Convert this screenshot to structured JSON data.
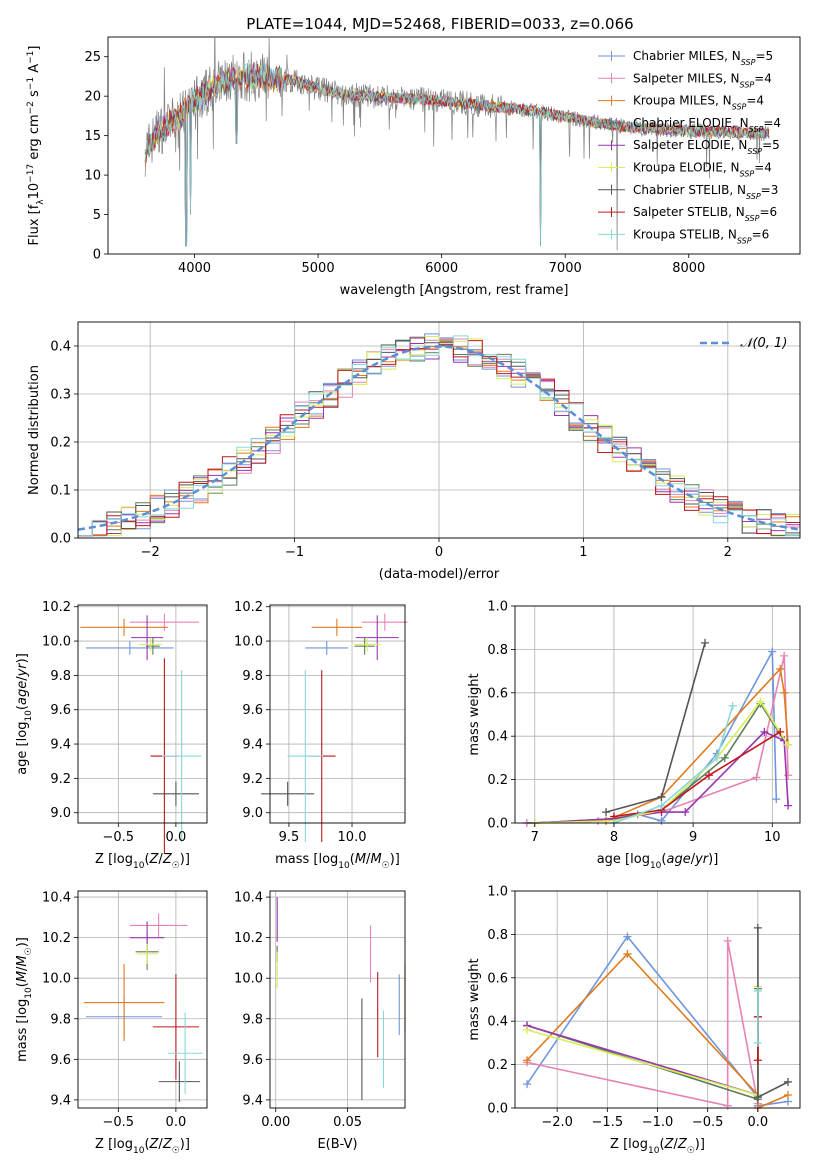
{
  "figure_title": "PLATE=1044, MJD=52468, FIBERID=0033, z=0.066",
  "colors": {
    "Chabrier MILES": "#6f96db",
    "Salpeter MILES": "#e583b5",
    "Kroupa MILES": "#e07b1f",
    "Chabrier ELODIE": "#5c7f5c",
    "Salpeter ELODIE": "#9a35ae",
    "Kroupa ELODIE": "#d7ee5a",
    "Chabrier STELIB": "#555555",
    "Salpeter STELIB": "#c0161d",
    "Kroupa STELIB": "#88d7da",
    "data": "#808080",
    "normal": "#5a8fd6",
    "grid": "#b0b0b0"
  },
  "chart_data": [
    {
      "id": "spectrum",
      "type": "line",
      "xlabel": "wavelength [Angstrom, rest frame]",
      "ylabel": "Flux [f_λ 10^-17 erg cm^-2 s^-1 A^-1]",
      "xlim": [
        3300,
        8900
      ],
      "ylim": [
        0,
        27.5
      ],
      "xticks": [
        4000,
        5000,
        6000,
        7000,
        8000
      ],
      "yticks": [
        0,
        5,
        10,
        15,
        20,
        25
      ],
      "grid": false,
      "legend_position": "top-right",
      "legend": [
        {
          "name": "Chabrier MILES",
          "nssp": "5"
        },
        {
          "name": "Salpeter MILES",
          "nssp": "4"
        },
        {
          "name": "Kroupa MILES",
          "nssp": "4"
        },
        {
          "name": "Chabrier ELODIE",
          "nssp": "4"
        },
        {
          "name": "Salpeter ELODIE",
          "nssp": "5"
        },
        {
          "name": "Kroupa ELODIE",
          "nssp": "4"
        },
        {
          "name": "Chabrier STELIB",
          "nssp": "3"
        },
        {
          "name": "Salpeter STELIB",
          "nssp": "6"
        },
        {
          "name": "Kroupa STELIB",
          "nssp": "6"
        }
      ],
      "continuum": {
        "x": [
          3600,
          3700,
          3850,
          4000,
          4200,
          4400,
          4600,
          4800,
          5000,
          5200,
          5400,
          5600,
          5800,
          6000,
          6200,
          6400,
          6600,
          6800,
          7000,
          7200,
          7400,
          7600,
          7800,
          8000,
          8200,
          8400,
          8600,
          8650
        ],
        "y": [
          13,
          15.5,
          17,
          19.5,
          21.5,
          22.5,
          22.3,
          22.0,
          21.0,
          20.2,
          20.0,
          19.8,
          19.6,
          19.4,
          19.1,
          18.7,
          18.4,
          18.0,
          17.4,
          16.8,
          16.3,
          16.0,
          15.8,
          15.6,
          15.5,
          15.4,
          15.3,
          15.3
        ]
      },
      "absorption_dips": [
        {
          "x": 3935,
          "y": 0
        },
        {
          "x": 3968,
          "y": 4
        },
        {
          "x": 4340,
          "y": 13
        },
        {
          "x": 6800,
          "y": 0
        },
        {
          "x": 7420,
          "y": 0
        }
      ]
    },
    {
      "id": "residuals",
      "type": "histogram",
      "xlabel": "(data-model)/error",
      "ylabel": "Normed distribution",
      "xlim": [
        -2.5,
        2.5
      ],
      "ylim": [
        0,
        0.45
      ],
      "xticks": [
        -2,
        -1,
        0,
        1,
        2
      ],
      "yticks": [
        0.0,
        0.1,
        0.2,
        0.3,
        0.4
      ],
      "grid": true,
      "bins": 50,
      "legend_position": "top-right",
      "legend": [
        {
          "name": "𝒩(0, 1)"
        }
      ],
      "reference_curve": {
        "mean": 0,
        "sigma": 1
      }
    },
    {
      "id": "age-vs-Z",
      "type": "errorbar",
      "xlabel": "Z [log₁₀(Z/Z☉)]",
      "ylabel": "age  [log₁₀(age/yr)]",
      "xlim": [
        -0.85,
        0.27
      ],
      "ylim": [
        8.94,
        10.21
      ],
      "xticks": [
        -0.5,
        0.0
      ],
      "yticks": [
        9.0,
        9.2,
        9.4,
        9.6,
        9.8,
        10.0,
        10.2
      ],
      "grid": true,
      "points": [
        {
          "model": "Chabrier MILES",
          "x": -0.4,
          "xerr": 0.38,
          "y": 9.96,
          "yerr": 0.04
        },
        {
          "model": "Salpeter MILES",
          "x": -0.1,
          "xerr": 0.3,
          "y": 10.11,
          "yerr": 0.05
        },
        {
          "model": "Kroupa MILES",
          "x": -0.45,
          "xerr": 0.38,
          "y": 10.08,
          "yerr": 0.05
        },
        {
          "model": "Chabrier ELODIE",
          "x": -0.2,
          "xerr": 0.06,
          "y": 9.97,
          "yerr": 0.05
        },
        {
          "model": "Salpeter ELODIE",
          "x": -0.25,
          "xerr": 0.14,
          "y": 10.02,
          "yerr": 0.13
        },
        {
          "model": "Kroupa ELODIE",
          "x": -0.22,
          "xerr": 0.1,
          "y": 9.98,
          "yerr": 0.04
        },
        {
          "model": "Chabrier STELIB",
          "x": 0.0,
          "xerr": 0.2,
          "y": 9.11,
          "yerr": 0.07
        },
        {
          "model": "Salpeter STELIB",
          "x": -0.1,
          "xerr": 0.12,
          "y": 9.33,
          "yerr": 0.57
        },
        {
          "model": "Kroupa STELIB",
          "x": 0.05,
          "xerr": 0.17,
          "y": 9.33,
          "yerr": 0.5
        }
      ]
    },
    {
      "id": "age-vs-mass",
      "type": "errorbar",
      "xlabel": "mass [log₁₀(M/M☉)]",
      "ylabel": "",
      "xlim": [
        9.35,
        10.42
      ],
      "ylim": [
        8.94,
        10.21
      ],
      "xticks": [
        9.5,
        10.0
      ],
      "yticks": [
        9.0,
        9.2,
        9.4,
        9.6,
        9.8,
        10.0,
        10.2
      ],
      "grid": true,
      "points": [
        {
          "model": "Chabrier MILES",
          "x": 9.8,
          "xerr": 0.17,
          "y": 9.96,
          "yerr": 0.04
        },
        {
          "model": "Salpeter MILES",
          "x": 10.26,
          "xerr": 0.18,
          "y": 10.11,
          "yerr": 0.05
        },
        {
          "model": "Kroupa MILES",
          "x": 9.88,
          "xerr": 0.2,
          "y": 10.08,
          "yerr": 0.05
        },
        {
          "model": "Chabrier ELODIE",
          "x": 10.1,
          "xerr": 0.08,
          "y": 9.97,
          "yerr": 0.05
        },
        {
          "model": "Salpeter ELODIE",
          "x": 10.2,
          "xerr": 0.17,
          "y": 10.02,
          "yerr": 0.13
        },
        {
          "model": "Kroupa ELODIE",
          "x": 10.12,
          "xerr": 0.1,
          "y": 9.98,
          "yerr": 0.04
        },
        {
          "model": "Chabrier STELIB",
          "x": 9.49,
          "xerr": 0.21,
          "y": 9.11,
          "yerr": 0.07
        },
        {
          "model": "Salpeter STELIB",
          "x": 9.76,
          "xerr": 0.11,
          "y": 9.33,
          "yerr": 0.5
        },
        {
          "model": "Kroupa STELIB",
          "x": 9.63,
          "xerr": 0.14,
          "y": 9.33,
          "yerr": 0.5
        }
      ]
    },
    {
      "id": "weight-vs-age",
      "type": "line",
      "xlabel": "age  [log₁₀(age/yr)]",
      "ylabel": "mass weight",
      "xlim": [
        6.75,
        10.35
      ],
      "ylim": [
        0,
        1
      ],
      "xticks": [
        7,
        8,
        9,
        10
      ],
      "yticks": [
        0.0,
        0.2,
        0.4,
        0.6,
        0.8,
        1.0
      ],
      "grid": true,
      "series": [
        {
          "model": "Chabrier MILES",
          "x": [
            6.9,
            7.9,
            8.3,
            8.6,
            9.3,
            10.0,
            10.05
          ],
          "y": [
            0.0,
            0.01,
            0.04,
            0.01,
            0.32,
            0.79,
            0.11
          ]
        },
        {
          "model": "Salpeter MILES",
          "x": [
            6.9,
            7.8,
            8.6,
            9.8,
            10.15,
            10.2
          ],
          "y": [
            0.0,
            0.01,
            0.05,
            0.21,
            0.77,
            0.22
          ]
        },
        {
          "model": "Kroupa MILES",
          "x": [
            7.0,
            7.9,
            8.6,
            10.1,
            10.15,
            10.2
          ],
          "y": [
            0.0,
            0.01,
            0.12,
            0.71,
            0.6,
            0.36
          ]
        },
        {
          "model": "Chabrier ELODIE",
          "x": [
            7.0,
            8.0,
            8.6,
            9.4,
            9.85,
            10.15
          ],
          "y": [
            0.0,
            0.02,
            0.06,
            0.3,
            0.55,
            0.38
          ]
        },
        {
          "model": "Salpeter ELODIE",
          "x": [
            7.0,
            8.0,
            8.6,
            8.9,
            9.9,
            10.15,
            10.2
          ],
          "y": [
            0.0,
            0.02,
            0.05,
            0.05,
            0.42,
            0.38,
            0.08
          ]
        },
        {
          "model": "Kroupa ELODIE",
          "x": [
            7.0,
            8.0,
            8.6,
            9.3,
            9.85,
            10.2
          ],
          "y": [
            0.0,
            0.01,
            0.06,
            0.3,
            0.56,
            0.36
          ]
        },
        {
          "model": "Chabrier STELIB",
          "x": [
            7.9,
            8.6,
            9.15
          ],
          "y": [
            0.05,
            0.12,
            0.83
          ]
        },
        {
          "model": "Salpeter STELIB",
          "x": [
            8.0,
            8.6,
            9.2,
            10.1
          ],
          "y": [
            0.03,
            0.06,
            0.22,
            0.42
          ]
        },
        {
          "model": "Kroupa STELIB",
          "x": [
            8.0,
            8.6,
            9.3,
            9.5
          ],
          "y": [
            0.0,
            0.08,
            0.3,
            0.54
          ]
        }
      ]
    },
    {
      "id": "mass-vs-Z",
      "type": "errorbar",
      "xlabel": "Z [log₁₀(Z/Z☉)]",
      "ylabel": "mass [log₁₀(M/M☉)]",
      "xlim": [
        -0.85,
        0.27
      ],
      "ylim": [
        9.36,
        10.43
      ],
      "xticks": [
        -0.5,
        0.0
      ],
      "yticks": [
        9.4,
        9.6,
        9.8,
        10.0,
        10.2,
        10.4
      ],
      "grid": true,
      "points": [
        {
          "model": "Chabrier MILES",
          "x": -0.45,
          "xerr": 0.33,
          "y": 9.81,
          "yerr": 0.1
        },
        {
          "model": "Salpeter MILES",
          "x": -0.15,
          "xerr": 0.25,
          "y": 10.26,
          "yerr": 0.06
        },
        {
          "model": "Kroupa MILES",
          "x": -0.45,
          "xerr": 0.35,
          "y": 9.88,
          "yerr": 0.19
        },
        {
          "model": "Chabrier ELODIE",
          "x": -0.25,
          "xerr": 0.1,
          "y": 10.13,
          "yerr": 0.09
        },
        {
          "model": "Salpeter ELODIE",
          "x": -0.25,
          "xerr": 0.15,
          "y": 10.2,
          "yerr": 0.08
        },
        {
          "model": "Kroupa ELODIE",
          "x": -0.25,
          "xerr": 0.09,
          "y": 10.12,
          "yerr": 0.05
        },
        {
          "model": "Chabrier STELIB",
          "x": 0.03,
          "xerr": 0.18,
          "y": 9.49,
          "yerr": 0.1
        },
        {
          "model": "Salpeter STELIB",
          "x": 0.0,
          "xerr": 0.2,
          "y": 9.76,
          "yerr": 0.26
        },
        {
          "model": "Kroupa STELIB",
          "x": 0.08,
          "xerr": 0.15,
          "y": 9.63,
          "yerr": 0.2
        }
      ]
    },
    {
      "id": "mass-vs-EBV",
      "type": "errorbar",
      "xlabel": "E(B-V)",
      "ylabel": "",
      "xlim": [
        -0.004,
        0.09
      ],
      "ylim": [
        9.36,
        10.43
      ],
      "xticks": [
        0.0,
        0.05
      ],
      "yticks": [
        9.4,
        9.6,
        9.8,
        10.0,
        10.2,
        10.4
      ],
      "grid": true,
      "points": [
        {
          "model": "Chabrier MILES",
          "x": 0.086,
          "xerr": 0,
          "y": 9.87,
          "yerr": 0.15
        },
        {
          "model": "Salpeter MILES",
          "x": 0.066,
          "xerr": 0,
          "y": 10.12,
          "yerr": 0.14
        },
        {
          "model": "Kroupa MILES",
          "x": 0.09,
          "xerr": 0,
          "y": 9.9,
          "yerr": 0.17
        },
        {
          "model": "Chabrier ELODIE",
          "x": 0.001,
          "xerr": 0,
          "y": 10.12,
          "yerr": 0.04
        },
        {
          "model": "Salpeter ELODIE",
          "x": 0.001,
          "xerr": 0,
          "y": 10.29,
          "yerr": 0.11
        },
        {
          "model": "Kroupa ELODIE",
          "x": 0.001,
          "xerr": 0,
          "y": 10.04,
          "yerr": 0.09
        },
        {
          "model": "Chabrier STELIB",
          "x": 0.06,
          "xerr": 0,
          "y": 9.65,
          "yerr": 0.25
        },
        {
          "model": "Salpeter STELIB",
          "x": 0.071,
          "xerr": 0,
          "y": 9.82,
          "yerr": 0.21
        },
        {
          "model": "Kroupa STELIB",
          "x": 0.075,
          "xerr": 0,
          "y": 9.65,
          "yerr": 0.19
        }
      ]
    },
    {
      "id": "weight-vs-Z",
      "type": "line",
      "xlabel": "Z [log₁₀(Z/Z☉)]",
      "ylabel": "mass weight",
      "xlim": [
        -2.42,
        0.42
      ],
      "ylim": [
        0,
        1
      ],
      "xticks": [
        -2.0,
        -1.5,
        -1.0,
        -0.5,
        0.0
      ],
      "yticks": [
        0.0,
        0.2,
        0.4,
        0.6,
        0.8,
        1.0
      ],
      "grid": true,
      "series": [
        {
          "model": "Chabrier MILES",
          "x": [
            -2.3,
            -1.3,
            0.0,
            0.0,
            0.3
          ],
          "y": [
            0.11,
            0.79,
            0.05,
            0.01,
            0.03
          ]
        },
        {
          "model": "Salpeter MILES",
          "x": [
            -2.3,
            -0.3,
            -0.3,
            0.0,
            0.0
          ],
          "y": [
            0.21,
            0.01,
            0.77,
            0.02,
            0.0
          ]
        },
        {
          "model": "Kroupa MILES",
          "x": [
            -2.3,
            -1.3,
            0.0,
            0.0,
            0.3
          ],
          "y": [
            0.22,
            0.71,
            0.06,
            0.0,
            0.06
          ]
        },
        {
          "model": "Chabrier ELODIE",
          "x": [
            -2.3,
            0.0,
            0.0
          ],
          "y": [
            0.38,
            0.04,
            0.55
          ]
        },
        {
          "model": "Salpeter ELODIE",
          "x": [
            -2.3,
            0.0,
            0.0
          ],
          "y": [
            0.38,
            0.06,
            0.42
          ]
        },
        {
          "model": "Kroupa ELODIE",
          "x": [
            -2.3,
            0.0,
            0.0
          ],
          "y": [
            0.36,
            0.06,
            0.56
          ]
        },
        {
          "model": "Chabrier STELIB",
          "x": [
            0.0,
            0.0,
            0.3
          ],
          "y": [
            0.83,
            0.05,
            0.12
          ]
        },
        {
          "model": "Salpeter STELIB",
          "x": [
            0.0,
            0.0
          ],
          "y": [
            0.42,
            0.22
          ]
        },
        {
          "model": "Kroupa STELIB",
          "x": [
            0.0,
            0.0
          ],
          "y": [
            0.54,
            0.3
          ]
        }
      ]
    }
  ]
}
